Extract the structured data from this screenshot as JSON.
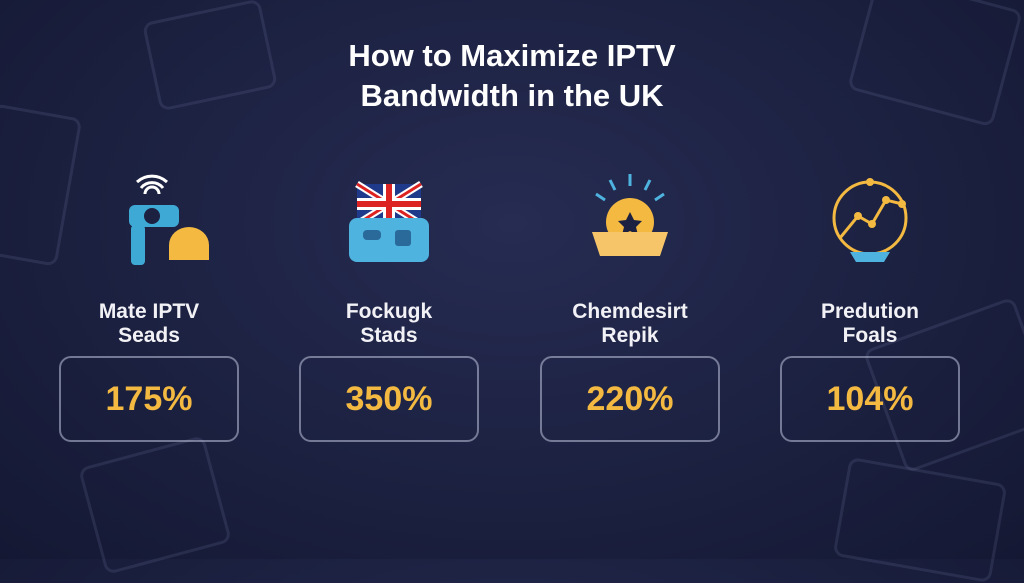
{
  "title_lines": [
    "How to Maximize IPTV",
    "Bandwidth in the UK"
  ],
  "accent_color": "#f3b941",
  "items": [
    {
      "label_lines": [
        "Mate IPTV",
        "Seads"
      ],
      "value": "175%",
      "icon": "wifi-antenna-icon"
    },
    {
      "label_lines": [
        "Fockugk",
        "Stads"
      ],
      "value": "350%",
      "icon": "uk-flag-router-icon"
    },
    {
      "label_lines": [
        "Chemdesirt",
        "Repik"
      ],
      "value": "220%",
      "icon": "sun-handshake-icon"
    },
    {
      "label_lines": [
        "Predution",
        "Foals"
      ],
      "value": "104%",
      "icon": "growth-chart-icon"
    }
  ]
}
